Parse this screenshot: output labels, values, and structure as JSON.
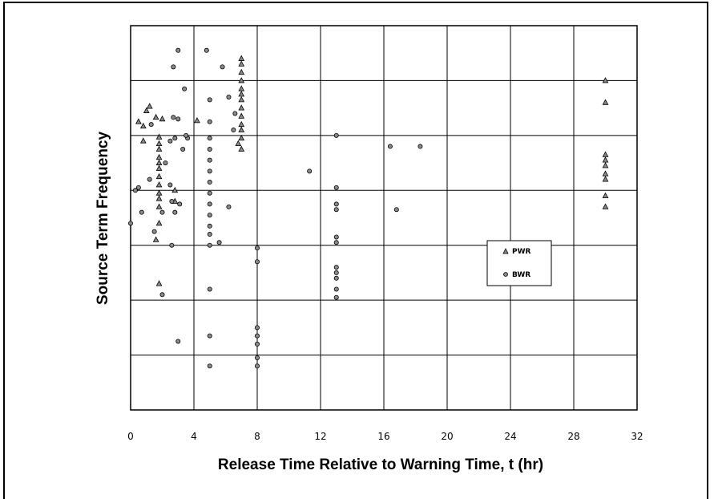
{
  "chart_data": {
    "type": "scatter",
    "title": "",
    "xlabel": "Release Time Relative to Warning Time, t (hr)",
    "ylabel": "Source Term Frequency",
    "xlim": [
      0,
      32
    ],
    "x_ticks": [
      "0",
      "4",
      "8",
      "12",
      "16",
      "20",
      "24",
      "28",
      "32"
    ],
    "y_gridlines": 7,
    "grid": true,
    "legend_position": "right",
    "series": [
      {
        "name": "PWR",
        "marker": "triangle",
        "points": [
          [
            0.8,
            5.17
          ],
          [
            1.0,
            5.45
          ],
          [
            1.2,
            5.53
          ],
          [
            0.5,
            5.25
          ],
          [
            1.6,
            5.33
          ],
          [
            2.0,
            5.3
          ],
          [
            0.8,
            4.9
          ],
          [
            1.8,
            4.97
          ],
          [
            1.8,
            4.85
          ],
          [
            1.8,
            4.75
          ],
          [
            1.8,
            4.6
          ],
          [
            1.8,
            4.5
          ],
          [
            1.8,
            4.4
          ],
          [
            1.8,
            4.25
          ],
          [
            1.8,
            4.1
          ],
          [
            1.8,
            3.95
          ],
          [
            1.8,
            3.85
          ],
          [
            1.8,
            3.7
          ],
          [
            1.8,
            3.4
          ],
          [
            1.6,
            3.1
          ],
          [
            1.8,
            2.3
          ],
          [
            2.8,
            4.0
          ],
          [
            2.8,
            3.8
          ],
          [
            4.2,
            5.27
          ],
          [
            7.0,
            6.4
          ],
          [
            7.0,
            6.3
          ],
          [
            7.0,
            6.15
          ],
          [
            7.0,
            6.0
          ],
          [
            7.0,
            5.85
          ],
          [
            7.0,
            5.75
          ],
          [
            7.0,
            5.65
          ],
          [
            7.0,
            5.5
          ],
          [
            7.0,
            5.35
          ],
          [
            7.0,
            5.2
          ],
          [
            7.0,
            5.1
          ],
          [
            7.0,
            4.95
          ],
          [
            6.8,
            4.85
          ],
          [
            7.0,
            4.75
          ],
          [
            30.0,
            6.0
          ],
          [
            30.0,
            5.6
          ],
          [
            30.0,
            4.65
          ],
          [
            30.0,
            4.55
          ],
          [
            30.0,
            4.45
          ],
          [
            30.0,
            4.3
          ],
          [
            30.0,
            4.2
          ],
          [
            30.0,
            3.9
          ],
          [
            30.0,
            3.7
          ]
        ]
      },
      {
        "name": "BWR",
        "marker": "circle",
        "points": [
          [
            0.3,
            4.0
          ],
          [
            0.5,
            4.05
          ],
          [
            0.0,
            3.4
          ],
          [
            0.7,
            3.6
          ],
          [
            1.2,
            4.2
          ],
          [
            1.5,
            3.25
          ],
          [
            1.3,
            5.2
          ],
          [
            2.2,
            4.5
          ],
          [
            2.5,
            4.9
          ],
          [
            2.8,
            4.95
          ],
          [
            3.0,
            5.3
          ],
          [
            2.7,
            5.33
          ],
          [
            3.4,
            5.85
          ],
          [
            3.6,
            4.95
          ],
          [
            3.3,
            4.75
          ],
          [
            3.5,
            5.0
          ],
          [
            2.5,
            4.1
          ],
          [
            2.6,
            3.8
          ],
          [
            2.8,
            3.6
          ],
          [
            3.1,
            3.75
          ],
          [
            2.6,
            3.0
          ],
          [
            2.0,
            3.6
          ],
          [
            2.0,
            2.1
          ],
          [
            3.0,
            1.25
          ],
          [
            2.7,
            6.25
          ],
          [
            3.0,
            6.55
          ],
          [
            4.8,
            6.55
          ],
          [
            5.0,
            5.65
          ],
          [
            5.0,
            5.25
          ],
          [
            5.0,
            4.95
          ],
          [
            5.0,
            4.75
          ],
          [
            5.0,
            4.55
          ],
          [
            5.0,
            4.35
          ],
          [
            5.0,
            4.15
          ],
          [
            5.0,
            3.95
          ],
          [
            5.0,
            3.75
          ],
          [
            5.0,
            3.55
          ],
          [
            5.0,
            3.35
          ],
          [
            5.0,
            3.2
          ],
          [
            5.0,
            3.0
          ],
          [
            5.6,
            3.05
          ],
          [
            6.2,
            3.7
          ],
          [
            5.0,
            2.2
          ],
          [
            5.0,
            1.35
          ],
          [
            5.0,
            0.8
          ],
          [
            5.8,
            6.25
          ],
          [
            6.2,
            5.7
          ],
          [
            6.6,
            5.4
          ],
          [
            6.5,
            5.1
          ],
          [
            8.0,
            2.95
          ],
          [
            8.0,
            2.7
          ],
          [
            8.0,
            1.5
          ],
          [
            8.0,
            1.35
          ],
          [
            8.0,
            1.2
          ],
          [
            8.0,
            0.95
          ],
          [
            8.0,
            0.8
          ],
          [
            11.3,
            4.35
          ],
          [
            13.0,
            5.0
          ],
          [
            13.0,
            4.05
          ],
          [
            13.0,
            3.75
          ],
          [
            13.0,
            3.65
          ],
          [
            13.0,
            3.15
          ],
          [
            13.0,
            3.05
          ],
          [
            13.0,
            2.6
          ],
          [
            13.0,
            2.5
          ],
          [
            13.0,
            2.4
          ],
          [
            13.0,
            2.2
          ],
          [
            13.0,
            2.05
          ],
          [
            16.4,
            4.8
          ],
          [
            18.3,
            4.8
          ],
          [
            16.8,
            3.65
          ]
        ]
      }
    ]
  }
}
